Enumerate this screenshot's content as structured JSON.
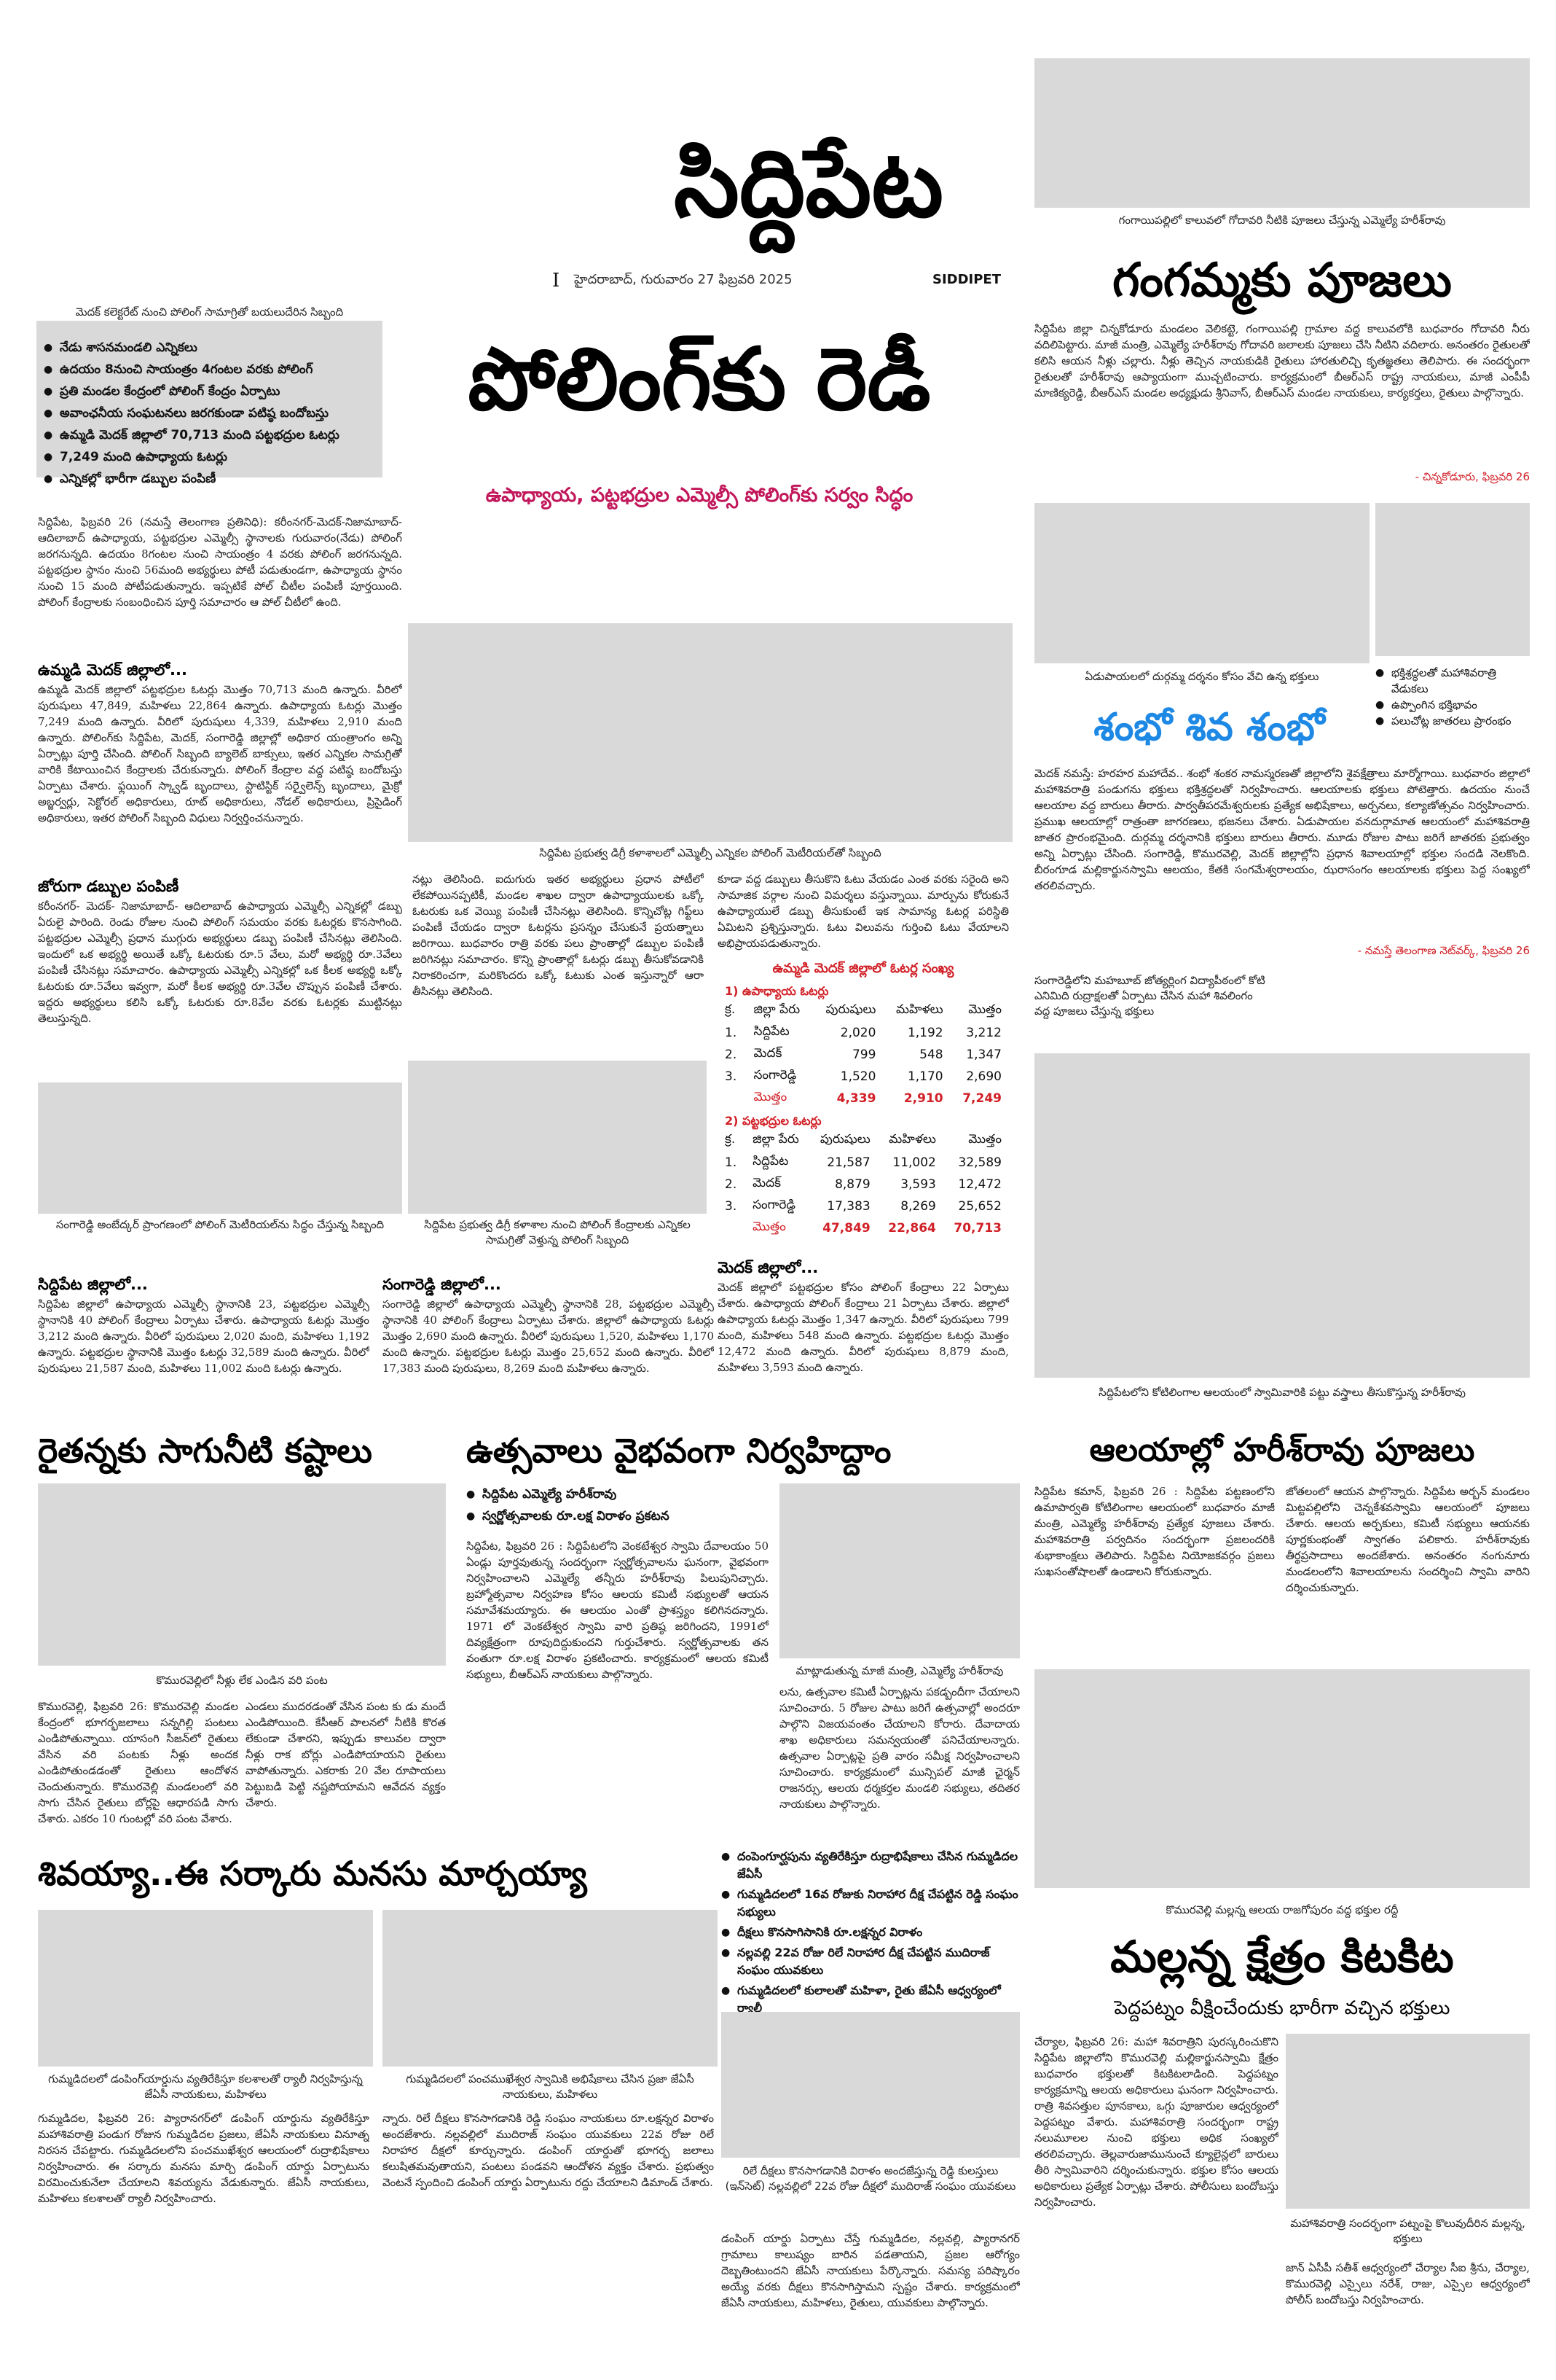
{
  "masthead": {
    "title": "సిద్దిపేట",
    "dateline": "హైదరాబాద్, గురువారం 27 ఫిబ్రవరి 2025",
    "edition": "SIDDIPET",
    "mark": "I"
  },
  "lead": {
    "photo_caption": "మెదక్ కలెక్టరేట్ నుంచి పోలింగ్ సామాగ్రితో బయలుదేరిన సిబ్బంది",
    "highlights": [
      "నేడు శాసనమండలి ఎన్నికలు",
      "ఉదయం 8నుంచి సాయంత్రం 4గంటల వరకు పోలింగ్",
      "ప్రతి మండల కేంద్రంలో పోలింగ్ కేంద్రం ఏర్పాటు",
      "అవాంఛనీయ సంఘటనలు జరగకుండా పటిష్ఠ బందోబస్తు",
      "ఉమ్మడి మెదక్ జిల్లాలో 70,713 మంది పట్టభద్రుల ఓటర్లు",
      "7,249 మంది ఉపాధ్యాయ ఓటర్లు",
      "ఎన్నికల్లో భారీగా డబ్బుల పంపిణీ"
    ],
    "headline": "పోలింగ్‌కు రెడీ",
    "subhead": "ఉపాధ్యాయ, పట్టభద్రుల ఎమ్మెల్సీ పోలింగ్‌కు సర్వం సిద్ధం",
    "p1": "సిద్దిపేట, ఫిబ్రవరి 26 (నమస్తే తెలంగాణ ప్రతినిధి): కరీంనగర్-మెదక్-నిజామాబాద్-ఆదిలాబాద్ ఉపాధ్యాయ, పట్టభద్రుల ఎమ్మెల్సీ స్థానాలకు గురువారం(నేడు) పోలింగ్ జరగనున్నది. ఉదయం 8గంటల నుంచి సాయంత్రం 4 వరకు పోలింగ్ జరగనున్నది. పట్టభద్రుల స్థానం నుంచి 56మంది అభ్యర్థులు పోటీ పడుతుండగా, ఉపాధ్యాయ స్థానం నుంచి 15 మంది పోటీపడుతున్నారు. ఇప్పటికే పోల్ చీటీల పంపిణీ పూర్తయింది. పోలింగ్ కేంద్రాలకు సంబంధించిన పూర్తి సమాచారం ఆ పోల్ చీటీలో ఉంది.",
    "s1": "ఉమ్మడి మెదక్ జిల్లాలో...",
    "p2": "ఉమ్మడి మెదక్ జిల్లాలో పట్టభద్రుల ఓటర్లు మొత్తం 70,713 మంది ఉన్నారు. వీరిలో పురుషులు 47,849, మహిళలు 22,864 ఉన్నారు. ఉపాధ్యాయ ఓటర్లు మొత్తం 7,249 మంది ఉన్నారు. వీరిలో పురుషులు 4,339, మహిళలు 2,910 మంది ఉన్నారు. పోలింగ్‌కు సిద్దిపేట, మెదక్, సంగారెడ్డి జిల్లాల్లో అధికార యంత్రాంగం అన్ని ఏర్పాట్లు పూర్తి చేసింది. పోలింగ్ సిబ్బంది బ్యాలెట్ బాక్సులు, ఇతర ఎన్నికల సామగ్రితో వారికి కేటాయించిన కేంద్రాలకు చేరుకున్నారు. పోలింగ్ కేంద్రాల వద్ద పటిష్ఠ బందోబస్తు ఏర్పాటు చేశారు. ఫ్లయింగ్ స్క్వాడ్ బృందాలు, స్టాటిస్టిక్ సర్వైలెన్స్ బృందాలు, మైక్రో అబ్జర్వర్లు, సెక్టోరల్ అధికారులు, రూట్ అధికారులు, నోడల్ అధికారులు, ప్రిసైడింగ్ అధికారులు, ఇతర పోలింగ్ సిబ్బంది విధులు నిర్వర్తించనున్నారు.",
    "s2": "జోరుగా డబ్బుల పంపిణీ",
    "p3": "కరీంనగర్- మెదక్- నిజామాబాద్- ఆదిలాబాద్ ఉపాధ్యాయ ఎమ్మెల్సీ ఎన్నికల్లో డబ్బు ఏరులై పారింది. రెండు రోజుల నుంచి పోలింగ్ సమయం వరకు ఓటర్లకు కొనసాగింది. పట్టభద్రుల ఎమ్మెల్సీ ప్రధాన ముగ్గురు అభ్యర్థులు డబ్బు పంపిణీ చేసినట్లు తెలిసింది. ఇందులో ఒక అభ్యర్థి అయితే ఒక్కో ఓటరుకు రూ.5 వేలు, మరో అభ్యర్థి రూ.3వేలు పంపిణీ చేసినట్లు సమాచారం. ఉపాధ్యాయ ఎమ్మెల్సీ ఎన్నికల్లో ఒక కీలక అభ్యర్థి ఒక్కో ఓటరుకు రూ.5వేలు ఇవ్వగా, మరో కీలక అభ్యర్థి రూ.3వేల చొప్పున పంపిణీ చేశారు. ఇద్దరు అభ్యర్థులు కలిసి ఒక్కో ఓటరుకు రూ.8వేల వరకు ఓటర్లకు ముట్టినట్లు తెలుస్తున్నది.",
    "mid_caption": "సిద్దిపేట ప్రభుత్వ డిగ్రీ కళాశాలలో ఎమ్మెల్సీ ఎన్నికల పోలింగ్ మెటీరియల్‌తో సిబ్బంది",
    "p4": "నట్లు తెలిసింది. ఐదుగురు ఇతర అభ్యర్థులు ప్రధాన పోటీలో లేకపోయినప్పటికీ, మండల శాఖల ద్వారా ఉపాధ్యాయులకు ఒక్కో ఓటరుకు ఒక వెయ్యి పంపిణీ చేసినట్లు తెలిసింది. కొన్నిచోట్ల గిఫ్ట్‌లు పంపిణీ చేయడం ద్వారా ఓటర్లను ప్రసన్నం చేసుకునే ప్రయత్నాలు జరిగాయి. బుధవారం రాత్రి వరకు పలు ప్రాంతాల్లో డబ్బుల పంపిణీ జరిగినట్లు సమాచారం. కొన్ని ప్రాంతాల్లో ఓటర్లు డబ్బు తీసుకోవడానికి నిరాకరించగా, మరికొందరు ఒక్కో ఓటుకు ఎంత ఇస్తున్నారో ఆరా తీసినట్లు తెలిసింది.",
    "p5": "కూడా వద్ద డబ్బులు తీసుకొని ఓటు వేయడం ఎంత వరకు సరైంది అని సామాజిక వర్గాల నుంచి విమర్శలు వస్తున్నాయి. మార్పును కోరుకునే ఉపాధ్యాయులే డబ్బు తీసుకుంటే ఇక సామాన్య ఓటర్ల పరిస్థితి ఏమిటని ప్రశ్నిస్తున్నారు. ఓటు విలువను గుర్తించి ఓటు వేయాలని అభిప్రాయపడుతున్నారు.",
    "table_title": "ఉమ్మడి మెదక్ జిల్లాలో ఓటర్ల సంఖ్య",
    "teacher_head": "1) ఉపాధ్యాయ ఓటర్లు",
    "grad_head": "2) పట్టభద్రుల ఓటర్లు",
    "columns": [
      "క్ర.",
      "జిల్లా పేరు",
      "పురుషులు",
      "మహిళలు",
      "మొత్తం"
    ],
    "teacher_rows": [
      [
        "1.",
        "సిద్దిపేట",
        "2,020",
        "1,192",
        "3,212"
      ],
      [
        "2.",
        "మెదక్",
        "799",
        "548",
        "1,347"
      ],
      [
        "3.",
        "సంగారెడ్డి",
        "1,520",
        "1,170",
        "2,690"
      ]
    ],
    "teacher_total": [
      "మొత్తం",
      "4,339",
      "2,910",
      "7,249"
    ],
    "grad_rows": [
      [
        "1.",
        "సిద్దిపేట",
        "21,587",
        "11,002",
        "32,589"
      ],
      [
        "2.",
        "మెదక్",
        "8,879",
        "3,593",
        "12,472"
      ],
      [
        "3.",
        "సంగారెడ్డి",
        "17,383",
        "8,269",
        "25,652"
      ]
    ],
    "grad_total": [
      "మొత్తం",
      "47,849",
      "22,864",
      "70,713"
    ]
  },
  "districts": {
    "cap1": "సంగారెడ్డి అంబేద్కర్ ప్రాంగణంలో పోలింగ్ మెటీరియల్‌ను సిద్ధం చేస్తున్న సిబ్బంది",
    "cap2": "సిద్దిపేట ప్రభుత్వ డిగ్రీ కళాశాల నుంచి పోలింగ్ కేంద్రాలకు ఎన్నికల సామగ్రితో వెళ్తున్న పోలింగ్ సిబ్బంది",
    "h1": "సిద్దిపేట జిల్లాలో...",
    "t1": "సిద్దిపేట జిల్లాలో ఉపాధ్యాయ ఎమ్మెల్సీ స్థానానికి 23, పట్టభద్రుల ఎమ్మెల్సీ స్థానానికి 40 పోలింగ్ కేంద్రాలు ఏర్పాటు చేశారు. ఉపాధ్యాయ ఓటర్లు మొత్తం 3,212 మంది ఉన్నారు. వీరిలో పురుషులు 2,020 మంది, మహిళలు 1,192 ఉన్నారు. పట్టభద్రుల స్థానానికి మొత్తం ఓటర్లు 32,589 మంది ఉన్నారు. వీరిలో పురుషులు 21,587 మంది, మహిళలు 11,002 మంది ఓటర్లు ఉన్నారు.",
    "h2": "సంగారెడ్డి జిల్లాలో...",
    "t2": "సంగారెడ్డి జిల్లాలో ఉపాధ్యాయ ఎమ్మెల్సీ స్థానానికి 28, పట్టభద్రుల ఎమ్మెల్సీ స్థానానికి 40 పోలింగ్ కేంద్రాలు ఏర్పాటు చేశారు. జిల్లాలో ఉపాధ్యాయ ఓటర్లు మొత్తం 2,690 మంది ఉన్నారు. వీరిలో పురుషులు 1,520, మహిళలు 1,170 మంది ఉన్నారు. పట్టభద్రుల ఓటర్లు మొత్తం 25,652 మంది ఉన్నారు. వీరిలో 17,383 మంది పురుషులు, 8,269 మంది మహిళలు ఉన్నారు.",
    "h3": "మెదక్ జిల్లాలో...",
    "t3": "మెదక్ జిల్లాలో పట్టభద్రుల కోసం పోలింగ్ కేంద్రాలు 22 ఏర్పాటు చేశారు. ఉపాధ్యాయ పోలింగ్ కేంద్రాలు 21 ఏర్పాటు చేశారు. జిల్లాలో ఉపాధ్యాయ ఓటర్లు మొత్తం 1,347 ఉన్నారు. వీరిలో పురుషులు 799 మంది, మహిళలు 548 మంది ఉన్నారు. పట్టభద్రుల ఓటర్లు మొత్తం 12,472 మంది ఉన్నారు. వీరిలో పురుషులు 8,879 మంది, మహిళలు 3,593 మంది ఉన్నారు."
  },
  "gangamma": {
    "caption": "గంగాయిపల్లిలో కాలువలో గోదావరి నీటికి పూజలు చేస్తున్న ఎమ్మెల్యే హరీశ్‌రావు",
    "headline": "గంగమ్మకు పూజలు",
    "body": "సిద్దిపేట జిల్లా చిన్నకోడూరు మండలం వెలికట్టె, గంగాయిపల్లి గ్రామాల వద్ద కాలువలోకి బుధవారం గోదావరి నీరు వదిలిపెట్టారు. మాజీ మంత్రి, ఎమ్మెల్యే హరీశ్‌రావు గోదావరి జలాలకు పూజలు చేసి నీటిని వదిలారు. అనంతరం రైతులతో కలిసి ఆయన నీళ్లు చల్లారు. నీళ్లు తెచ్చిన నాయకుడికి రైతులు హారతులిచ్చి కృతజ్ఞతలు తెలిపారు. ఈ సందర్భంగా రైతులతో హరీశ్‌రావు ఆప్యాయంగా ముచ్చటించారు. కార్యక్రమంలో బీఆర్‌ఎస్ రాష్ట్ర నాయకులు, మాజీ ఎంపీపీ మాణిక్యరెడ్డి, బీఆర్‌ఎస్ మండల అధ్యక్షుడు శ్రీనివాస్, బీఆర్‌ఎస్ మండల నాయకులు, కార్యకర్తలు, రైతులు పాల్గొన్నారు.",
    "credit": "- చిన్నకోడూరు, ఫిబ్రవరి 26"
  },
  "shiva": {
    "caption": "ఏడుపాయలలో దుర్గమ్మ దర్శనం కోసం వేచి ఉన్న భక్తులు",
    "headline": "శంభో శివ శంభో",
    "bullets": [
      "భక్తిశ్రద్ధలతో మహాశివరాత్రి వేడుకలు",
      "ఉప్పొంగిన భక్తిభావం",
      "పలుచోట్ల జాతరలు ప్రారంభం"
    ],
    "body": "మెదక్ నమస్తే: హరహర మహాదేవ.. శంభో శంకర నామస్మరణతో జిల్లాలోని శైవక్షేత్రాలు మార్మోగాయి. బుధవారం జిల్లాలో మహాశివరాత్రి పండుగను భక్తులు భక్తిశ్రద్ధలతో నిర్వహించారు. ఆలయాలకు భక్తులు పోటెత్తారు. ఉదయం నుంచే ఆలయాల వద్ద బారులు తీరారు. పార్వతీపరమేశ్వరులకు ప్రత్యేక అభిషేకాలు, అర్చనలు, కల్యాణోత్సవం నిర్వహించారు. ప్రముఖ ఆలయాల్లో రాత్రంతా జాగరణలు, భజనలు చేశారు. ఏడుపాయల వనదుర్గామాత ఆలయంలో మహాశివరాత్రి జాతర ప్రారంభమైంది. దుర్గమ్మ దర్శనానికి భక్తులు బారులు తీరారు. మూడు రోజుల పాటు జరిగే జాతరకు ప్రభుత్వం అన్ని ఏర్పాట్లు చేసింది. సంగారెడ్డి, కొమురవెల్లి, మెదక్ జిల్లాల్లోని ప్రధాన శివాలయాల్లో భక్తుల సందడి నెలకొంది. బీరంగూడ మల్లికార్జునస్వామి ఆలయం, కేతకి సంగమేశ్వరాలయం, ఝరాసంగం ఆలయాలకు భక్తులు పెద్ద సంఖ్యలో తరలివచ్చారు.",
    "credit": "- నమస్తే తెలంగాణ నెట్‌వర్క్, ఫిబ్రవరి 26",
    "photo2_caption": "సంగారెడ్డిలోని మహబూబ్ జోత్యర్లింగ విద్యాపీఠంలో కోటి ఎనిమిది రుద్రాక్షలతో ఏర్పాటు చేసిన మహా శివలింగం వద్ద పూజలు చేస్తున్న భక్తులు"
  },
  "rythu": {
    "headline": "రైతన్నకు సాగునీటి కష్టాలు",
    "caption": "కొమురవెల్లిలో నీళ్లు లేక ఎండిన వరి పంట",
    "body1": "కొమురవెల్లి, ఫిబ్రవరి 26: కొమురవెల్లి మండల కేంద్రంలో భూగర్భజలాలు సన్నగిల్లి పంటలు ఎండిపోతున్నాయి. యాసంగి సీజన్‌లో రైతులు వేసిన వరి పంటకు నీళ్లు అందక ఎండిపోతుండడంతో రైతులు ఆందోళన చెందుతున్నారు. కొమురవెల్లి మండలంలో వరి సాగు చేసిన రైతులు బోర్లపై ఆధారపడి సాగు చేశారు. ఎకరం 10 గుంటల్లో వరి పంట వేశారు.",
    "body2": "ఎండలు ముదరడంతో వేసిన పంట కు డు మందే ఎండిపోయింది. కేసీఆర్ పాలనలో నీటికి కొరత లేకుండా చేశారని, ఇప్పుడు కాలువల ద్వారా నీళ్లు రాక బోర్లు ఎండిపోయాయని రైతులు వాపోతున్నారు. ఎకరాకు 20 వేల రూపాయలు పెట్టుబడి పెట్టి నష్టపోయామని ఆవేదన వ్యక్తం చేశారు."
  },
  "utsavalu": {
    "headline": "ఉత్సవాలు వైభవంగా నిర్వహిద్దాం",
    "bullets": [
      "సిద్దిపేట ఎమ్మెల్యే హరీశ్‌రావు",
      "స్వర్ణోత్సవాలకు రూ.లక్ష విరాళం ప్రకటన"
    ],
    "body": "సిద్దిపేట, ఫిబ్రవరి 26 : సిద్దిపేటలోని వెంకటేశ్వర స్వామి దేవాలయం 50 ఏండ్లు పూర్తవుతున్న సందర్భంగా స్వర్ణోత్సవాలను ఘనంగా, వైభవంగా నిర్వహించాలని ఎమ్మెల్యే తన్నీరు హరీశ్‌రావు పిలుపునిచ్చారు. బ్రహ్మోత్సవాల నిర్వహణ కోసం ఆలయ కమిటీ సభ్యులతో ఆయన సమావేశమయ్యారు. ఈ ఆలయం ఎంతో ప్రాశస్త్యం కలిగినదన్నారు. 1971 లో వెంకటేశ్వర స్వామి వారి ప్రతిష్ఠ జరిగిందని, 1991లో దివ్యక్షేత్రంగా రూపుదిద్దుకుందని గుర్తుచేశారు. స్వర్ణోత్సవాలకు తన వంతుగా రూ.లక్ష విరాళం ప్రకటించారు. కార్యక్రమంలో ఆలయ కమిటీ సభ్యులు, బీఆర్‌ఎస్ నాయకులు పాల్గొన్నారు.",
    "photo_caption": "మాట్లాడుతున్న మాజీ మంత్రి, ఎమ్మెల్యే హరీశ్‌రావు",
    "body2": "లను, ఉత్సవాల కమిటీ ఏర్పాట్లను పకడ్బందీగా చేయాలని సూచించారు. 5 రోజుల పాటు జరిగే ఉత్సవాల్లో అందరూ పాల్గొని విజయవంతం చేయాలని కోరారు. దేవాదాయ శాఖ అధికారులు సమన్వయంతో పనిచేయాలన్నారు. ఉత్సవాల ఏర్పాట్లపై ప్రతి వారం సమీక్ష నిర్వహించాలని సూచించారు. కార్యక్రమంలో మున్సిపల్ మాజీ ఛైర్మన్ రాజనర్సు, ఆలయ ధర్మకర్తల మండలి సభ్యులు, తదితర నాయకులు పాల్గొన్నారు."
  },
  "alayallo": {
    "caption": "సిద్దిపేటలోని కోటిలింగాల ఆలయంలో స్వామివారికి పట్టు వస్త్రాలు తీసుకొస్తున్న హరీశ్‌రావు",
    "headline": "ఆలయాల్లో హరీశ్‌రావు పూజలు",
    "body1": "సిద్దిపేట కమాన్, ఫిబ్రవరి 26 : సిద్దిపేట పట్టణంలోని ఉమాపార్వతి కోటిలింగాల ఆలయంలో బుధవారం మాజీ మంత్రి, ఎమ్మెల్యే హరీశ్‌రావు ప్రత్యేక పూజలు చేశారు. మహాశివరాత్రి పర్వదినం సందర్భంగా ప్రజలందరికి శుభాకాంక్షలు తెలిపారు. సిద్దిపేట నియోజకవర్గం ప్రజలు సుఖసంతోషాలతో ఉండాలని కోరుకున్నారు.",
    "body2": "జోతలంలో ఆయన పాల్గొన్నారు. సిద్దిపేట అర్బన్ మండలం మిట్టపల్లిలోని చెన్నకేశవస్వామి ఆలయంలో పూజలు చేశారు. ఆలయ అర్చకులు, కమిటీ సభ్యులు ఆయనకు పూర్ణకుంభంతో స్వాగతం పలికారు. హరీశ్‌రావుకు తీర్థప్రసాదాలు అందజేశారు. అనంతరం నంగునూరు మండలంలోని శివాలయాలను సందర్శించి స్వామి వారిని దర్శించుకున్నారు."
  },
  "shivayya": {
    "headline": "శివయ్యా..ఈ సర్కారు మనసు మార్చయ్యా",
    "bullets": [
      "దంపెంగూర్ఘపును వ్యతిరేకిస్తూ రుద్రాభిషేకాలు చేసిన గుమ్మడిదల జేఏసీ",
      "గుమ్మడిదలలో 16వ రోజుకు నిరాహార దీక్ష చేపట్టిన రెడ్డి సంఘం సభ్యులు",
      "దీక్షలు కొనసాగిసానికి రూ.లక్షన్నర విరాళం",
      "నల్లవల్లి 22వ రోజు రిలే నిరాహార దీక్ష చేపట్టిన ముదిరాజ్ సంఘం యువకులు",
      "గుమ్మడిదలలో కులాలతో మహిళా, రైతు జేఏసీ ఆధ్వర్యంలో ర్యాలీ"
    ],
    "cap1": "గుమ్మడిదలలో డంపింగ్‌యార్డును వ్యతిరేకిస్తూ కలశాలతో ర్యాలీ నిర్వహిస్తున్న జేఏసీ నాయకులు, మహిళలు",
    "cap2": "గుమ్మడిదలలో పంచముఖేశ్వర స్వామికి అభిషేకాలు చేసిన ప్రజా జేఏసీ నాయకులు, మహిళలు",
    "cap3": "రిలే దీక్షలు కొనసాగడానికి విరాళం అందజేస్తున్న రెడ్డి కులస్తులు (ఇన్‌సెట్) నల్లవల్లిలో 22వ రోజు దీక్షలో ముదిరాజ్ సంఘం యువకులు",
    "body1": "గుమ్మడిదల, ఫిబ్రవరి 26: ప్యారానగర్‌లో డంపింగ్ యార్డును వ్యతిరేకిస్తూ మహాశివరాత్రి పండుగ రోజున గుమ్మడిదల ప్రజలు, జేఏసీ నాయకులు వినూత్న నిరసన చేపట్టారు. గుమ్మడిదలలోని పంచముఖేశ్వర ఆలయంలో రుద్రాభిషేకాలు నిర్వహించారు. ఈ సర్కారు మనసు మార్చి డంపింగ్ యార్డు ఏర్పాటును విరమించుకునేలా చేయాలని శివయ్యను వేడుకున్నారు. జేఏసీ నాయకులు, మహిళలు కలశాలతో ర్యాలీ నిర్వహించారు.",
    "body2": "న్నారు. రిలే దీక్షలు కొనసాగడానికి రెడ్డి సంఘం నాయకులు రూ.లక్షన్నర విరాళం అందజేశారు. నల్లవల్లిలో ముదిరాజ్ సంఘం యువకులు 22వ రోజు రిలే నిరాహార దీక్షలో కూర్చున్నారు. డంపింగ్ యార్డుతో భూగర్భ జలాలు కలుషితమవుతాయని, పంటలు పండవని ఆందోళన వ్యక్తం చేశారు. ప్రభుత్వం వెంటనే స్పందించి డంపింగ్ యార్డు ఏర్పాటును రద్దు చేయాలని డిమాండ్ చేశారు.",
    "body3": "డంపింగ్ యార్డు ఏర్పాటు చేస్తే గుమ్మడిదల, నల్లవల్లి, ప్యారానగర్ గ్రామాలు కాలుష్యం బారిన పడతాయని, ప్రజల ఆరోగ్యం దెబ్బతింటుందని జేఏసీ నాయకులు పేర్కొన్నారు. సమస్య పరిష్కారం అయ్యే వరకు దీక్షలు కొనసాగిస్తామని స్పష్టం చేశారు. కార్యక్రమంలో జేఏసీ నాయకులు, మహిళలు, రైతులు, యువకులు పాల్గొన్నారు."
  },
  "mallanna": {
    "caption": "కొమురవెల్లి మల్లన్న ఆలయ రాజగోపురం వద్ద భక్తుల రద్దీ",
    "headline": "మల్లన్న క్షేత్రం కిటకిట",
    "subhead": "పెద్దపట్నం వీక్షించేందుకు భారీగా వచ్చిన భక్తులు",
    "body": "చేర్యాల, ఫిబ్రవరి 26: మహా శివరాత్రిని పురస్కరించుకొని సిద్దిపేట జిల్లాలోని కొమురవెల్లి మల్లికార్జునస్వామి క్షేత్రం బుధవారం భక్తులతో కిటకిటలాడింది. పెద్దపట్నం కార్యక్రమాన్ని ఆలయ అధికారులు ఘనంగా నిర్వహించారు. రాత్రి శివసత్తుల పూనకాలు, ఒగ్గు పూజారుల ఆధ్వర్యంలో పెద్దపట్నం వేశారు. మహాశివరాత్రి సందర్భంగా రాష్ట్ర నలుమూలల నుంచి భక్తులు అధిక సంఖ్యలో తరలివచ్చారు. తెల్లవారుజామునుంచే క్యూలైన్లలో బారులు తీరి స్వామివారిని దర్శించుకున్నారు. భక్తుల కోసం ఆలయ అధికారులు ప్రత్యేక ఏర్పాట్లు చేశారు. పోలీసులు బందోబస్తు నిర్వహించారు.",
    "photo2_caption": "మహాశివరాత్రి సందర్భంగా పట్నంపై కొలువుదీరిన మల్లన్న, భక్తులు",
    "body2": "జాన్ ఏసీపీ సతీశ్ ఆధ్వర్యంలో చేర్యాల సీఐ శ్రీను, చేర్యాల, కొమురవెల్లి ఎస్సైలు నరేశ్, రాజు, ఎస్సైల ఆధ్వర్యంలో పోలీస్ బందోబస్తు నిర్వహించారు."
  }
}
